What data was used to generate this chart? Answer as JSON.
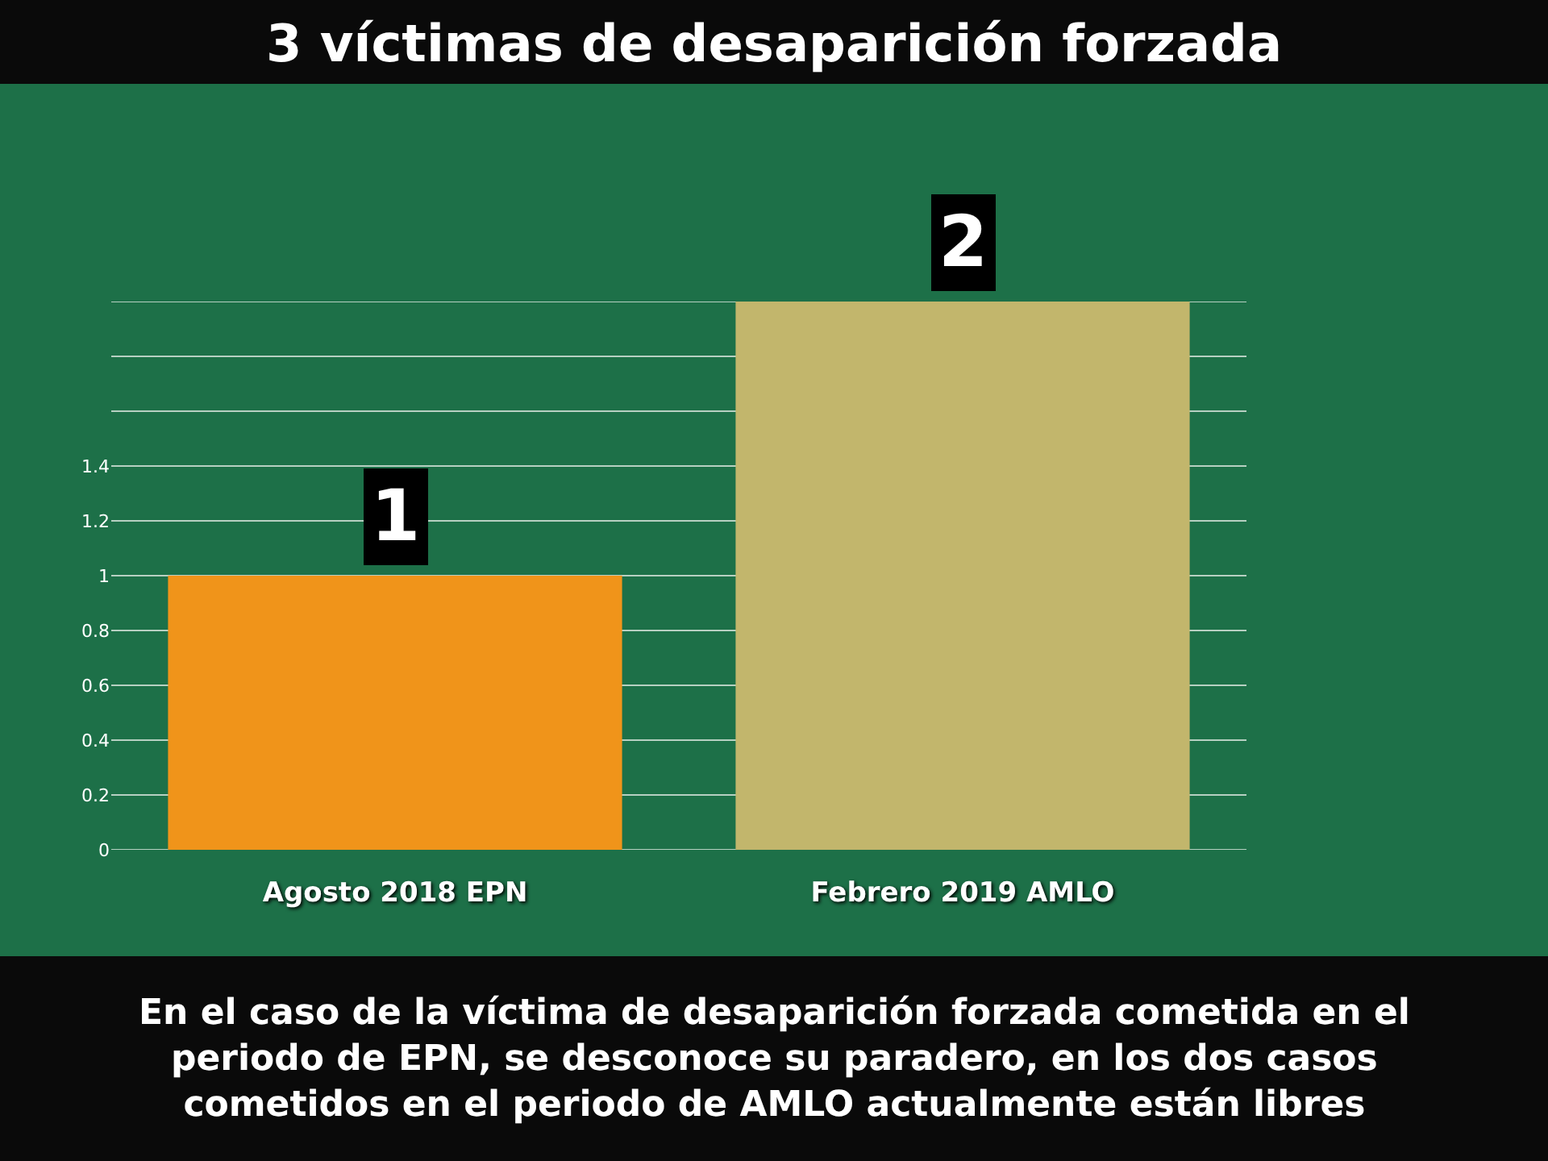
{
  "chart_data": {
    "type": "bar",
    "title": "3 víctimas de desaparición forzada",
    "categories": [
      "Agosto 2018 EPN",
      "Febrero 2019 AMLO"
    ],
    "values": [
      1,
      2
    ],
    "colors": [
      "#f0941a",
      "#c2b66c"
    ],
    "ylim": [
      0,
      2
    ],
    "yticks": [
      0,
      0.2,
      0.4,
      0.6,
      0.8,
      1,
      1.2,
      1.4,
      {
        "value": 1.6,
        "label": null
      },
      {
        "value": 1.8,
        "label": null
      },
      {
        "value": 2,
        "label": null
      }
    ],
    "grid": "y",
    "data_labels": true,
    "annotations": [
      "En el caso de la víctima de desaparición forzada cometida en el periodo de EPN, se desconoce su paradero, en los dos casos cometidos en el periodo de AMLO actualmente están libres"
    ]
  }
}
